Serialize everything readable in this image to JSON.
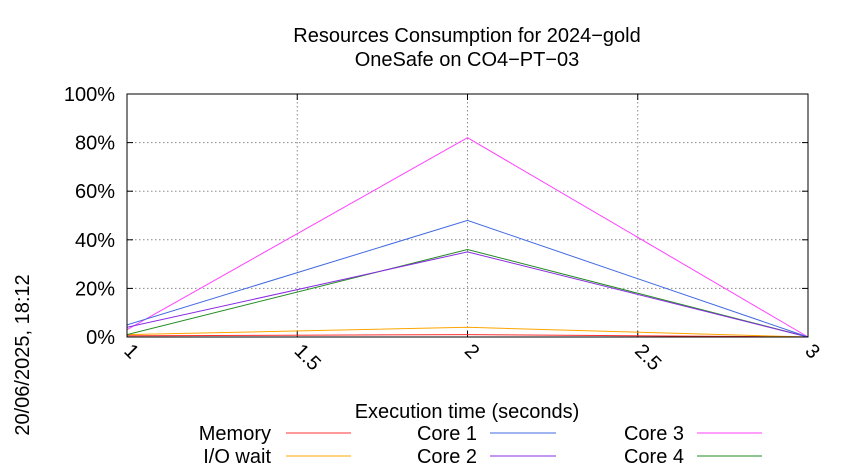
{
  "side_label": "20/06/2025, 18:12",
  "chart_data": {
    "type": "line",
    "title": "Resources Consumption for 2024−gold",
    "subtitle": "OneSafe on CO4−PT−03",
    "xlabel": "Execution time (seconds)",
    "ylabel": "",
    "xlim": [
      1,
      3
    ],
    "ylim": [
      0,
      100
    ],
    "x_ticks": [
      {
        "value": 1,
        "label": "1"
      },
      {
        "value": 1.5,
        "label": "1.5"
      },
      {
        "value": 2,
        "label": "2"
      },
      {
        "value": 2.5,
        "label": "2.5"
      },
      {
        "value": 3,
        "label": "3"
      }
    ],
    "y_ticks": [
      {
        "value": 0,
        "label": "0%"
      },
      {
        "value": 20,
        "label": "20%"
      },
      {
        "value": 40,
        "label": "40%"
      },
      {
        "value": 60,
        "label": "60%"
      },
      {
        "value": 80,
        "label": "80%"
      },
      {
        "value": 100,
        "label": "100%"
      }
    ],
    "grid": true,
    "legend_position": "bottom",
    "x": [
      1,
      2,
      3
    ],
    "series": [
      {
        "name": "Memory",
        "color": "#ff3030",
        "values": [
          0.5,
          1,
          0
        ]
      },
      {
        "name": "I/O wait",
        "color": "#ffa500",
        "values": [
          1,
          4,
          0
        ]
      },
      {
        "name": "Core 1",
        "color": "#4169e1",
        "values": [
          5,
          48,
          0
        ]
      },
      {
        "name": "Core 2",
        "color": "#8a2be2",
        "values": [
          4,
          35,
          0
        ]
      },
      {
        "name": "Core 3",
        "color": "#ff40ff",
        "values": [
          3,
          82,
          0
        ]
      },
      {
        "name": "Core 4",
        "color": "#228b22",
        "values": [
          1,
          36,
          0
        ]
      }
    ]
  }
}
